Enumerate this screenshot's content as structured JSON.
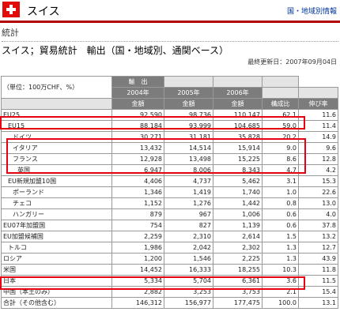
{
  "header": {
    "country": "スイス",
    "link": "国・地域別情報"
  },
  "section": "統計",
  "title": "スイス；貿易統計　輸出（国・地域別、通関ベース）",
  "updated": "最終更新日：2007年09月04日",
  "table": {
    "unit": "（単位：100万CHF、%）",
    "group_label": "輸　出",
    "years": [
      "2004年",
      "2005年",
      "2006年"
    ],
    "amount_label": "金額",
    "share_label": "構成比",
    "growth_label": "伸び率",
    "rows": [
      {
        "name": "EU25",
        "v2004": "92,590",
        "v2005": "98,736",
        "v2006": "110,147",
        "share": "62.1",
        "growth": "11.6"
      },
      {
        "name": "EU15",
        "v2004": "88,184",
        "v2005": "93,999",
        "v2006": "104,685",
        "share": "59.0",
        "growth": "11.4"
      },
      {
        "name": "ドイツ",
        "v2004": "30,271",
        "v2005": "31,181",
        "v2006": "35,828",
        "share": "20.2",
        "growth": "14.9"
      },
      {
        "name": "イタリア",
        "v2004": "13,432",
        "v2005": "14,514",
        "v2006": "15,914",
        "share": "9.0",
        "growth": "9.6"
      },
      {
        "name": "フランス",
        "v2004": "12,928",
        "v2005": "13,498",
        "v2006": "15,225",
        "share": "8.6",
        "growth": "12.8"
      },
      {
        "name": "英国",
        "v2004": "6,947",
        "v2005": "8,006",
        "v2006": "8,343",
        "share": "4.7",
        "growth": "4.2"
      },
      {
        "name": "EU新規加盟10国",
        "v2004": "4,406",
        "v2005": "4,737",
        "v2006": "5,462",
        "share": "3.1",
        "growth": "15.3"
      },
      {
        "name": "ポーランド",
        "v2004": "1,346",
        "v2005": "1,419",
        "v2006": "1,740",
        "share": "1.0",
        "growth": "22.6"
      },
      {
        "name": "チェコ",
        "v2004": "1,152",
        "v2005": "1,276",
        "v2006": "1,442",
        "share": "0.8",
        "growth": "13.0"
      },
      {
        "name": "ハンガリー",
        "v2004": "879",
        "v2005": "967",
        "v2006": "1,006",
        "share": "0.6",
        "growth": "4.0"
      },
      {
        "name": "EU07年加盟国",
        "v2004": "754",
        "v2005": "827",
        "v2006": "1,139",
        "share": "0.6",
        "growth": "37.8"
      },
      {
        "name": "EU加盟候補国",
        "v2004": "2,259",
        "v2005": "2,310",
        "v2006": "2,614",
        "share": "1.5",
        "growth": "13.2"
      },
      {
        "name": "トルコ",
        "v2004": "1,986",
        "v2005": "2,042",
        "v2006": "2,302",
        "share": "1.3",
        "growth": "12.7"
      },
      {
        "name": "ロシア",
        "v2004": "1,200",
        "v2005": "1,546",
        "v2006": "2,225",
        "share": "1.3",
        "growth": "43.9"
      },
      {
        "name": "米国",
        "v2004": "14,452",
        "v2005": "16,333",
        "v2006": "18,255",
        "share": "10.3",
        "growth": "11.8"
      },
      {
        "name": "日本",
        "v2004": "5,334",
        "v2005": "5,704",
        "v2006": "6,361",
        "share": "3.6",
        "growth": "11.5"
      },
      {
        "name": "中国（本土のみ）",
        "v2004": "2,882",
        "v2005": "3,253",
        "v2006": "3,753",
        "share": "2.1",
        "growth": "15.4"
      },
      {
        "name": "合計（その他含む）",
        "v2004": "146,312",
        "v2005": "156,977",
        "v2006": "177,475",
        "share": "100.0",
        "growth": "13.1"
      }
    ]
  }
}
